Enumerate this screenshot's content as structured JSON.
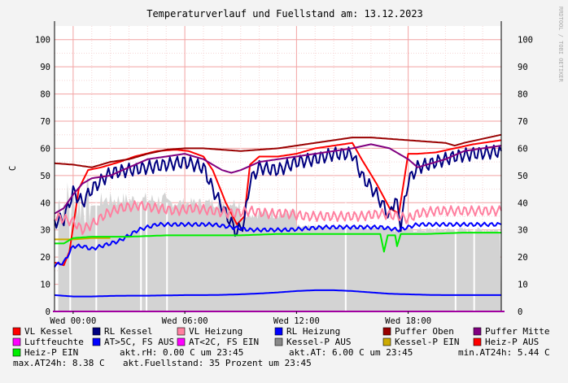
{
  "chart_data": {
    "type": "line",
    "title": "Temperaturverlauf und Fuellstand am: 13.12.2023",
    "ylabel": "C",
    "side_label": "RRDTOOL / TOBI OETIKER",
    "ylim": [
      0,
      105
    ],
    "yticks": [
      0,
      10,
      20,
      30,
      40,
      50,
      60,
      70,
      80,
      90,
      100
    ],
    "xrange_hours": [
      -1.0,
      23.0
    ],
    "xticks": [
      {
        "label": "Wed 00:00",
        "hour": 0
      },
      {
        "label": "Wed 06:00",
        "hour": 6
      },
      {
        "label": "Wed 12:00",
        "hour": 12
      },
      {
        "label": "Wed 18:00",
        "hour": 18
      }
    ],
    "grid": true,
    "legend_placement": "bottom",
    "series": [
      {
        "name": "VL Kessel",
        "color": "#ff0000",
        "kind": "line",
        "points": [
          [
            -1,
            18
          ],
          [
            -0.5,
            17
          ],
          [
            -0.2,
            22
          ],
          [
            0.3,
            45
          ],
          [
            0.8,
            52
          ],
          [
            1.5,
            53
          ],
          [
            2.5,
            55
          ],
          [
            3.3,
            57
          ],
          [
            4.5,
            59
          ],
          [
            5.5,
            59.5
          ],
          [
            6.2,
            59
          ],
          [
            7,
            57
          ],
          [
            7.5,
            52
          ],
          [
            8.2,
            40
          ],
          [
            8.8,
            32
          ],
          [
            9.2,
            35
          ],
          [
            9.5,
            54
          ],
          [
            10,
            57
          ],
          [
            11,
            57
          ],
          [
            12,
            58
          ],
          [
            13,
            60
          ],
          [
            14,
            61
          ],
          [
            15,
            62
          ],
          [
            15.5,
            56
          ],
          [
            16.3,
            47
          ],
          [
            17,
            38
          ],
          [
            17.5,
            36
          ],
          [
            18,
            58
          ],
          [
            18.5,
            58
          ],
          [
            19.5,
            58.5
          ],
          [
            20.5,
            60
          ],
          [
            21.5,
            61.5
          ],
          [
            23,
            63
          ]
        ]
      },
      {
        "name": "RL Kessel",
        "color": "#000080",
        "kind": "line",
        "osc": 2.5,
        "points": [
          [
            -1,
            33
          ],
          [
            -0.5,
            34
          ],
          [
            0,
            44
          ],
          [
            0.5,
            40
          ],
          [
            1,
            45
          ],
          [
            2,
            51
          ],
          [
            3,
            52
          ],
          [
            4,
            53
          ],
          [
            5,
            54
          ],
          [
            6,
            55
          ],
          [
            7,
            53
          ],
          [
            7.5,
            45
          ],
          [
            8.2,
            36
          ],
          [
            8.8,
            29
          ],
          [
            9.2,
            33
          ],
          [
            9.5,
            48
          ],
          [
            10,
            53
          ],
          [
            11,
            52
          ],
          [
            12,
            55
          ],
          [
            13,
            56
          ],
          [
            14,
            58
          ],
          [
            15,
            58
          ],
          [
            15.5,
            50
          ],
          [
            16.3,
            43
          ],
          [
            17,
            35
          ],
          [
            17.3,
            42
          ],
          [
            17.6,
            32
          ],
          [
            18,
            48
          ],
          [
            18.5,
            53
          ],
          [
            19.5,
            55
          ],
          [
            20.5,
            57
          ],
          [
            21.5,
            58
          ],
          [
            23,
            59
          ]
        ]
      },
      {
        "name": "VL Heizung",
        "color": "#ff80a0",
        "kind": "line",
        "osc": 1.8,
        "points": [
          [
            -1,
            35
          ],
          [
            -0.5,
            34
          ],
          [
            0,
            33
          ],
          [
            0.5,
            30
          ],
          [
            1,
            32
          ],
          [
            1.8,
            36
          ],
          [
            2.5,
            38
          ],
          [
            3.5,
            39
          ],
          [
            4.5,
            38
          ],
          [
            5.5,
            37
          ],
          [
            6.5,
            38
          ],
          [
            7.5,
            37
          ],
          [
            8.5,
            36
          ],
          [
            9.5,
            37
          ],
          [
            10.5,
            36
          ],
          [
            11.5,
            36
          ],
          [
            12.5,
            35
          ],
          [
            13.5,
            35
          ],
          [
            14.5,
            35
          ],
          [
            15.5,
            35
          ],
          [
            16.5,
            36
          ],
          [
            17.5,
            35
          ],
          [
            18,
            34
          ],
          [
            18.5,
            36
          ],
          [
            19.5,
            37
          ],
          [
            20.5,
            37
          ],
          [
            21.5,
            37
          ],
          [
            23,
            37
          ]
        ]
      },
      {
        "name": "RL Heizung",
        "color": "#0000ff",
        "kind": "line",
        "osc": 0.7,
        "points": [
          [
            -1,
            17
          ],
          [
            -0.5,
            18
          ],
          [
            0,
            24
          ],
          [
            0.5,
            24
          ],
          [
            1,
            23
          ],
          [
            1.5,
            24
          ],
          [
            2.5,
            26
          ],
          [
            3.5,
            30
          ],
          [
            4.5,
            32
          ],
          [
            5.5,
            32
          ],
          [
            6.5,
            32
          ],
          [
            7.5,
            32
          ],
          [
            8.5,
            31
          ],
          [
            9.5,
            30
          ],
          [
            10.5,
            30
          ],
          [
            11.5,
            30
          ],
          [
            12.5,
            30.5
          ],
          [
            13.5,
            31
          ],
          [
            14.5,
            31
          ],
          [
            15.5,
            31
          ],
          [
            16.5,
            31
          ],
          [
            17.5,
            30
          ],
          [
            18.5,
            32
          ],
          [
            19.5,
            32
          ],
          [
            20.5,
            32
          ],
          [
            21.5,
            32
          ],
          [
            23,
            32
          ]
        ]
      },
      {
        "name": "Puffer Oben",
        "color": "#990000",
        "kind": "line",
        "points": [
          [
            -1,
            54.5
          ],
          [
            0,
            54
          ],
          [
            1,
            53
          ],
          [
            2,
            55
          ],
          [
            3,
            56
          ],
          [
            4,
            58
          ],
          [
            5,
            59.5
          ],
          [
            6,
            60
          ],
          [
            7,
            60
          ],
          [
            8,
            59.5
          ],
          [
            9,
            59
          ],
          [
            10,
            59.5
          ],
          [
            11,
            60
          ],
          [
            12,
            61
          ],
          [
            13,
            62
          ],
          [
            14,
            63
          ],
          [
            15,
            64
          ],
          [
            16,
            64
          ],
          [
            17,
            63.5
          ],
          [
            18,
            63
          ],
          [
            19,
            62.5
          ],
          [
            20,
            62
          ],
          [
            20.5,
            61
          ],
          [
            21,
            62
          ],
          [
            22,
            63.5
          ],
          [
            23,
            65
          ]
        ]
      },
      {
        "name": "Puffer Mitte",
        "color": "#800080",
        "kind": "line",
        "points": [
          [
            -1,
            36
          ],
          [
            -0.5,
            38
          ],
          [
            0,
            43
          ],
          [
            0.5,
            47
          ],
          [
            1,
            49
          ],
          [
            2,
            50
          ],
          [
            3,
            53
          ],
          [
            4,
            56
          ],
          [
            5,
            57
          ],
          [
            6,
            58
          ],
          [
            7,
            56
          ],
          [
            8,
            52
          ],
          [
            8.5,
            51
          ],
          [
            9,
            52
          ],
          [
            10,
            55
          ],
          [
            11,
            56
          ],
          [
            12,
            57
          ],
          [
            13,
            58
          ],
          [
            14,
            59
          ],
          [
            15,
            60
          ],
          [
            16,
            61.5
          ],
          [
            17,
            60
          ],
          [
            18,
            56
          ],
          [
            18.5,
            53
          ],
          [
            19,
            54
          ],
          [
            20,
            56
          ],
          [
            21,
            59
          ],
          [
            22,
            60
          ],
          [
            23,
            61
          ]
        ]
      },
      {
        "name": "Luftfeuchte",
        "color": "#ff00ff",
        "kind": "line",
        "points": []
      },
      {
        "name": "AT>5C, FS AUS",
        "color": "#0000ff",
        "kind": "line",
        "points": [
          [
            -1,
            6
          ],
          [
            0,
            5.5
          ],
          [
            1,
            5.5
          ],
          [
            2,
            5.7
          ],
          [
            3,
            5.8
          ],
          [
            4,
            5.8
          ],
          [
            5,
            5.9
          ],
          [
            6,
            6.0
          ],
          [
            7,
            6.0
          ],
          [
            8,
            6.1
          ],
          [
            9,
            6.3
          ],
          [
            10,
            6.6
          ],
          [
            11,
            7
          ],
          [
            12,
            7.5
          ],
          [
            13,
            7.8
          ],
          [
            14,
            7.8
          ],
          [
            15,
            7.5
          ],
          [
            16,
            7.0
          ],
          [
            17,
            6.5
          ],
          [
            18,
            6.3
          ],
          [
            19,
            6.1
          ],
          [
            20,
            6.0
          ],
          [
            21,
            6.0
          ],
          [
            22,
            6.0
          ],
          [
            23,
            6.0
          ]
        ]
      },
      {
        "name": "AT<2C, FS EIN",
        "color": "#ff00ff",
        "kind": "line",
        "points": []
      },
      {
        "name": "Kessel-P AUS",
        "color": "#888888",
        "kind": "line",
        "points": []
      },
      {
        "name": "Kessel-P EIN",
        "color": "#ccaa00",
        "kind": "line",
        "points": [
          [
            -1,
            26.5
          ],
          [
            0,
            26.5
          ],
          [
            1,
            27
          ],
          [
            2,
            27
          ]
        ]
      },
      {
        "name": "Heiz-P AUS",
        "color": "#ff0000",
        "kind": "line",
        "points": []
      },
      {
        "name": "Heiz-P EIN",
        "color": "#00ee00",
        "kind": "line",
        "points": [
          [
            -1,
            25
          ],
          [
            -0.5,
            25
          ],
          [
            0,
            27
          ],
          [
            1,
            27.5
          ],
          [
            3,
            27.5
          ],
          [
            5,
            28
          ],
          [
            7,
            28
          ],
          [
            9,
            28
          ],
          [
            11,
            28.5
          ],
          [
            13,
            28.5
          ],
          [
            15,
            28.5
          ],
          [
            16.5,
            28.5
          ],
          [
            16.7,
            22
          ],
          [
            16.9,
            28
          ],
          [
            17.3,
            28
          ],
          [
            17.4,
            24
          ],
          [
            17.6,
            28.5
          ],
          [
            19,
            28.5
          ],
          [
            21,
            29
          ],
          [
            23,
            29
          ]
        ]
      }
    ],
    "status_text": [
      {
        "label": "akt.rH:",
        "value": "0.00 C um 23:45"
      },
      {
        "label": "akt.AT:",
        "value": "6.00 C um 23:45"
      },
      {
        "label": "min.AT24h:",
        "value": "5.44 C"
      },
      {
        "label": "max.AT24h:",
        "value": "8.38 C"
      },
      {
        "label": "akt.Fuellstand:",
        "value": "35 Prozent um 23:45"
      }
    ]
  }
}
